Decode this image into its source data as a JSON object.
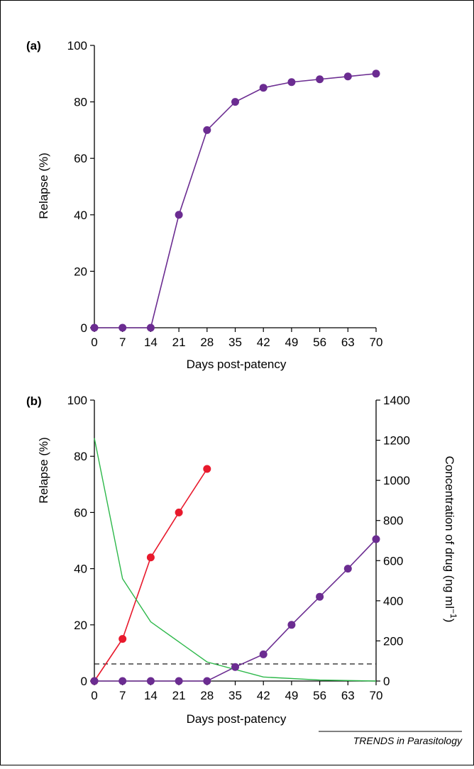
{
  "chart_data": [
    {
      "panel_label": "(a)",
      "type": "line",
      "xlabel": "Days post-patency",
      "ylabel": "Relapse (%)",
      "x_ticks": [
        0,
        7,
        14,
        21,
        28,
        35,
        42,
        49,
        56,
        63,
        70
      ],
      "y_ticks": [
        0,
        20,
        40,
        60,
        80,
        100
      ],
      "xlim": [
        0,
        70
      ],
      "ylim": [
        0,
        100
      ],
      "grid": false,
      "series": [
        {
          "color": "#6b2c91",
          "markers": true,
          "x": [
            0,
            7,
            14,
            21,
            28,
            35,
            42,
            49,
            56,
            63,
            70
          ],
          "y": [
            0,
            0,
            0,
            40,
            70,
            80,
            85,
            87,
            88,
            89,
            90
          ]
        }
      ]
    },
    {
      "panel_label": "(b)",
      "type": "line",
      "xlabel": "Days post-patency",
      "ylabel": "Relapse (%)",
      "y2label": "Concentration of drug (ng ml",
      "y2label_sup": "−1",
      "y2label_end": ")",
      "x_ticks": [
        0,
        7,
        14,
        21,
        28,
        35,
        42,
        49,
        56,
        63,
        70
      ],
      "y_ticks": [
        0,
        20,
        40,
        60,
        80,
        100
      ],
      "y2_ticks": [
        0,
        200,
        400,
        600,
        800,
        1000,
        1200,
        1400
      ],
      "xlim": [
        0,
        70
      ],
      "ylim": [
        0,
        100
      ],
      "y2lim": [
        0,
        1400
      ],
      "grid": false,
      "series": [
        {
          "color": "#e8192c",
          "markers": true,
          "axis": "left",
          "x": [
            0,
            7,
            14,
            21,
            28
          ],
          "y": [
            0,
            15,
            44,
            60,
            75.5
          ]
        },
        {
          "color": "#6b2c91",
          "markers": true,
          "axis": "left",
          "x": [
            0,
            7,
            14,
            21,
            28,
            35,
            42,
            49,
            56,
            63,
            70
          ],
          "y": [
            0,
            0,
            0,
            0,
            0,
            5,
            9.5,
            20,
            30,
            40,
            50.5
          ]
        },
        {
          "color": "#2db84a",
          "markers": false,
          "axis": "right",
          "x": [
            0,
            7,
            14,
            28,
            42,
            56,
            70
          ],
          "y": [
            1210,
            510,
            295,
            95,
            20,
            5,
            0
          ]
        }
      ],
      "threshold": {
        "axis": "right",
        "value": 85,
        "style": "dashed",
        "color": "#000000"
      }
    }
  ],
  "source": "TRENDS in Parasitology"
}
